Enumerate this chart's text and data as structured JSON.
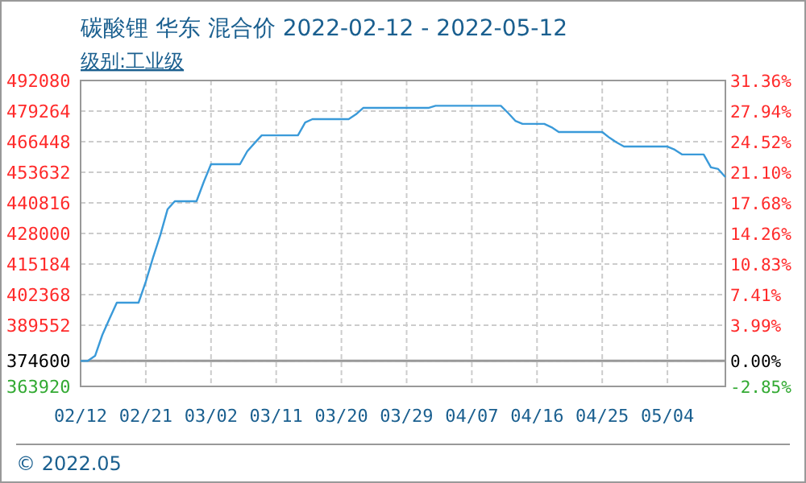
{
  "chart_data": {
    "type": "line",
    "title": "碳酸锂 华东 混合价 2022-02-12 - 2022-05-12",
    "subtitle": "级别:工业级",
    "annotations": [
      "© 2022.05"
    ],
    "x": [
      "2022-02-12",
      "2022-02-13",
      "2022-02-14",
      "2022-02-15",
      "2022-02-16",
      "2022-02-17",
      "2022-02-20",
      "2022-02-21",
      "2022-02-22",
      "2022-02-23",
      "2022-02-24",
      "2022-02-25",
      "2022-02-28",
      "2022-03-01",
      "2022-03-02",
      "2022-03-06",
      "2022-03-07",
      "2022-03-08",
      "2022-03-09",
      "2022-03-14",
      "2022-03-15",
      "2022-03-16",
      "2022-03-21",
      "2022-03-22",
      "2022-03-23",
      "2022-04-01",
      "2022-04-02",
      "2022-04-11",
      "2022-04-12",
      "2022-04-13",
      "2022-04-14",
      "2022-04-17",
      "2022-04-18",
      "2022-04-19",
      "2022-04-25",
      "2022-04-26",
      "2022-04-27",
      "2022-04-28",
      "2022-05-04",
      "2022-05-05",
      "2022-05-06",
      "2022-05-09",
      "2022-05-10",
      "2022-05-11",
      "2022-05-12"
    ],
    "series": [
      {
        "color": "#3a9ad9",
        "values": [
          374600,
          374600,
          376700,
          385500,
          392300,
          399000,
          399000,
          407800,
          417900,
          427300,
          438100,
          441500,
          441500,
          449600,
          457000,
          457000,
          462400,
          465800,
          469100,
          469100,
          474500,
          475900,
          475900,
          477900,
          480600,
          480600,
          481500,
          481500,
          478500,
          475200,
          473900,
          473900,
          472500,
          470500,
          470500,
          468100,
          466100,
          464400,
          464400,
          463100,
          461100,
          461100,
          455700,
          455000,
          451600
        ]
      }
    ],
    "xlim": [
      "2022-02-12",
      "2022-05-12"
    ],
    "xticks": [
      {
        "value": "2022-02-12",
        "label": "02/12"
      },
      {
        "value": "2022-02-21",
        "label": "02/21"
      },
      {
        "value": "2022-03-02",
        "label": "03/02"
      },
      {
        "value": "2022-03-11",
        "label": "03/11"
      },
      {
        "value": "2022-03-20",
        "label": "03/20"
      },
      {
        "value": "2022-03-29",
        "label": "03/29"
      },
      {
        "value": "2022-04-07",
        "label": "04/07"
      },
      {
        "value": "2022-04-16",
        "label": "04/16"
      },
      {
        "value": "2022-04-25",
        "label": "04/25"
      },
      {
        "value": "2022-05-04",
        "label": "05/04"
      }
    ],
    "ylim": [
      363920,
      492080
    ],
    "yticks": [
      363920,
      374600,
      389552,
      402368,
      415184,
      428000,
      440816,
      453632,
      466448,
      479264,
      492080
    ],
    "y2lim": [
      -2.85,
      31.36
    ],
    "y2ticks": [
      {
        "value": -2.85,
        "label": "-2.85%"
      },
      {
        "value": 0,
        "label": "0.00%"
      },
      {
        "value": 3.99,
        "label": "3.99%"
      },
      {
        "value": 7.41,
        "label": "7.41%"
      },
      {
        "value": 10.83,
        "label": "10.83%"
      },
      {
        "value": 14.26,
        "label": "14.26%"
      },
      {
        "value": 17.68,
        "label": "17.68%"
      },
      {
        "value": 21.1,
        "label": "21.10%"
      },
      {
        "value": 24.52,
        "label": "24.52%"
      },
      {
        "value": 27.94,
        "label": "27.94%"
      },
      {
        "value": 31.36,
        "label": "31.36%"
      }
    ],
    "ref_lines": [
      {
        "axis": "y",
        "value": 374600,
        "color": "#999999"
      }
    ],
    "grid": true,
    "marker": "none",
    "line_style": "solid"
  }
}
